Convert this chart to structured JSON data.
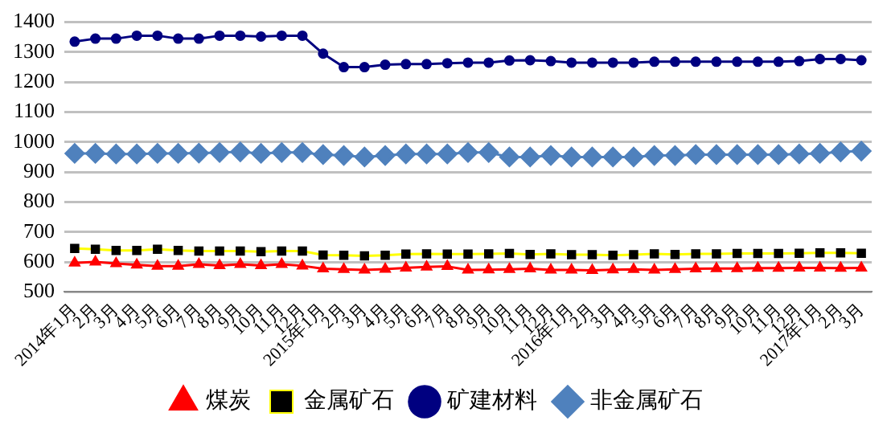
{
  "chart_data": {
    "type": "line",
    "categories": [
      "2014年1月",
      "2月",
      "3月",
      "4月",
      "5月",
      "6月",
      "7月",
      "8月",
      "9月",
      "10月",
      "11月",
      "12月",
      "2015年1月",
      "2月",
      "3月",
      "4月",
      "5月",
      "6月",
      "7月",
      "8月",
      "9月",
      "10月",
      "11月",
      "12月",
      "2016年1月",
      "2月",
      "3月",
      "4月",
      "5月",
      "6月",
      "7月",
      "8月",
      "9月",
      "10月",
      "11月",
      "12月",
      "2017年1月",
      "2月",
      "3月"
    ],
    "series": [
      {
        "name": "煤炭",
        "color": "#ff0000",
        "marker": "triangle",
        "values": [
          597,
          600,
          595,
          590,
          586,
          586,
          592,
          588,
          592,
          588,
          592,
          587,
          577,
          575,
          573,
          576,
          580,
          583,
          585,
          573,
          574,
          575,
          577,
          573,
          573,
          572,
          574,
          575,
          573,
          575,
          577,
          578,
          578,
          579,
          579,
          580,
          580,
          579,
          580
        ]
      },
      {
        "name": "金属矿石",
        "color": "#ffff00",
        "marker": "square",
        "colors": [
          "#000000",
          "#000000",
          "#000000",
          "#000000",
          "#000000",
          "#000000",
          "#000000",
          "#000000",
          "#000000",
          "#000000",
          "#000000",
          "#000000",
          "#000000",
          "#000000",
          "#000000",
          "#000000",
          "#000000",
          "#000000",
          "#000000",
          "#000000",
          "#000000",
          "#000000",
          "#000000",
          "#000000",
          "#000000",
          "#000000",
          "#000000",
          "#000000",
          "#000000",
          "#000000",
          "#000000",
          "#000000",
          "#000000",
          "#000000",
          "#000000",
          "#000000",
          "#000000",
          "#000000",
          "#000000"
        ],
        "values": [
          645,
          642,
          638,
          638,
          642,
          638,
          636,
          636,
          636,
          634,
          636,
          636,
          623,
          622,
          620,
          622,
          626,
          627,
          626,
          626,
          627,
          628,
          625,
          627,
          624,
          624,
          622,
          624,
          627,
          625,
          627,
          627,
          628,
          628,
          628,
          629,
          630,
          630,
          629
        ]
      },
      {
        "name": "矿建材料",
        "color": "#000080",
        "marker": "circle",
        "values": [
          1335,
          1345,
          1345,
          1355,
          1355,
          1345,
          1345,
          1355,
          1355,
          1352,
          1355,
          1355,
          1295,
          1250,
          1250,
          1258,
          1260,
          1260,
          1263,
          1265,
          1265,
          1272,
          1273,
          1270,
          1265,
          1265,
          1265,
          1265,
          1268,
          1268,
          1268,
          1268,
          1268,
          1268,
          1268,
          1270,
          1277,
          1277,
          1273
        ]
      },
      {
        "name": "非金属矿石",
        "color": "#4f81bd",
        "marker": "diamond",
        "values": [
          962,
          962,
          960,
          960,
          962,
          962,
          963,
          965,
          967,
          962,
          965,
          965,
          958,
          955,
          950,
          955,
          960,
          960,
          960,
          965,
          965,
          950,
          950,
          955,
          950,
          950,
          950,
          950,
          955,
          955,
          958,
          958,
          958,
          958,
          958,
          960,
          962,
          967,
          970
        ]
      }
    ],
    "ylim": [
      500,
      1400
    ],
    "yticks": [
      500,
      600,
      700,
      800,
      900,
      1000,
      1100,
      1200,
      1300,
      1400
    ],
    "grid": "y",
    "legend": "bottom"
  }
}
